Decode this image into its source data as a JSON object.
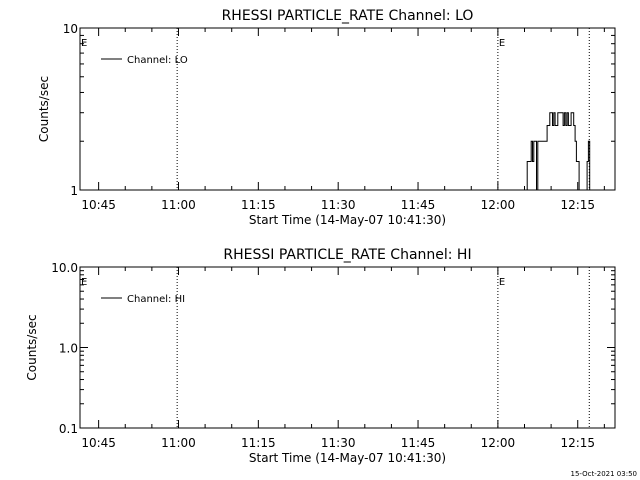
{
  "footer": {
    "timestamp": "15-Oct-2021 03:50"
  },
  "chart_data": [
    {
      "type": "line",
      "title": "RHESSI PARTICLE_RATE Channel: LO",
      "xlabel": "Start Time (14-May-07 10:41:30)",
      "ylabel": "Counts/sec",
      "y_scale": "log",
      "xlim": [
        "10:41:30",
        "12:22:00"
      ],
      "ylim": [
        1,
        10
      ],
      "x_ticks": [
        "10:45",
        "11:00",
        "11:15",
        "11:30",
        "11:45",
        "12:00",
        "12:15"
      ],
      "y_ticks": [
        "1",
        "10"
      ],
      "legend": {
        "entries": [
          "Channel: LO"
        ],
        "position": "top-left"
      },
      "event_lines": [
        {
          "time": "10:41:30",
          "label": "E",
          "style": "dotted"
        },
        {
          "time": "10:59:45",
          "label": "",
          "style": "dotted"
        },
        {
          "time": "12:00:00",
          "label": "E",
          "style": "dotted"
        },
        {
          "time": "12:17:10",
          "label": "",
          "style": "dotted"
        }
      ],
      "series": [
        {
          "name": "Channel: LO",
          "x": [
            "12:05:00",
            "12:05:15",
            "12:05:30",
            "12:05:45",
            "12:06:00",
            "12:06:15",
            "12:06:30",
            "12:06:45",
            "12:07:00",
            "12:07:15",
            "12:07:30",
            "12:07:45",
            "12:08:00",
            "12:08:15",
            "12:08:30",
            "12:08:45",
            "12:09:00",
            "12:09:15",
            "12:09:30",
            "12:09:45",
            "12:10:00",
            "12:10:15",
            "12:10:30",
            "12:10:45",
            "12:11:00",
            "12:11:15",
            "12:11:30",
            "12:11:45",
            "12:12:00",
            "12:12:15",
            "12:12:30",
            "12:12:45",
            "12:13:00",
            "12:13:15",
            "12:13:30",
            "12:13:45",
            "12:14:00",
            "12:14:15",
            "12:14:30",
            "12:14:45",
            "12:15:00",
            "12:15:15",
            "12:15:30",
            "12:15:45",
            "12:16:00",
            "12:16:15",
            "12:16:30",
            "12:16:45",
            "12:17:00",
            "12:17:15"
          ],
          "y": [
            0.9,
            1,
            1.5,
            1.5,
            1.5,
            2,
            1.5,
            2,
            2,
            1,
            2,
            2,
            2,
            2,
            2,
            2,
            2,
            2.5,
            2.5,
            3,
            3,
            2.5,
            3,
            2.5,
            2.5,
            3,
            3,
            3,
            3,
            2.5,
            3,
            2.5,
            3,
            2.5,
            2.5,
            3,
            3,
            2.5,
            2,
            1.5,
            1.5,
            1,
            1,
            0.9,
            0.9,
            0.9,
            1,
            1.5,
            2,
            0.9
          ]
        }
      ]
    },
    {
      "type": "line",
      "title": "RHESSI PARTICLE_RATE Channel: HI",
      "xlabel": "Start Time (14-May-07 10:41:30)",
      "ylabel": "Counts/sec",
      "y_scale": "log",
      "xlim": [
        "10:41:30",
        "12:22:00"
      ],
      "ylim": [
        0.1,
        10
      ],
      "x_ticks": [
        "10:45",
        "11:00",
        "11:15",
        "11:30",
        "11:45",
        "12:00",
        "12:15"
      ],
      "y_ticks": [
        "0.1",
        "1.0",
        "10.0"
      ],
      "legend": {
        "entries": [
          "Channel: HI"
        ],
        "position": "top-left"
      },
      "event_lines": [
        {
          "time": "10:41:30",
          "label": "E",
          "style": "dotted"
        },
        {
          "time": "10:59:45",
          "label": "",
          "style": "dotted"
        },
        {
          "time": "12:00:00",
          "label": "E",
          "style": "dotted"
        },
        {
          "time": "12:17:10",
          "label": "",
          "style": "dotted"
        }
      ],
      "series": [
        {
          "name": "Channel: HI",
          "x": [],
          "y": []
        }
      ]
    }
  ]
}
